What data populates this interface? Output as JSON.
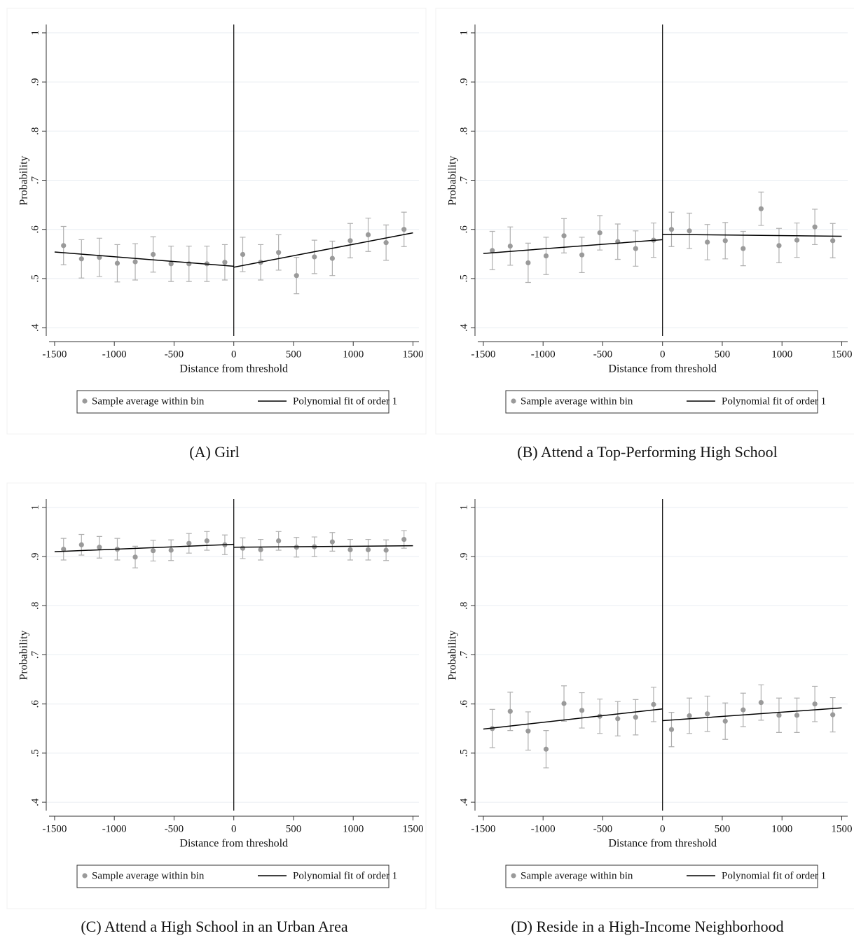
{
  "chart_data": [
    {
      "type": "scatter",
      "caption": "(A) Girl",
      "xlabel": "Distance from threshold",
      "ylabel": "Probability",
      "xlim": [
        -1570,
        1550
      ],
      "ylim": [
        0.383,
        1.017
      ],
      "xticks": [
        -1500,
        -1000,
        -500,
        0,
        500,
        1000,
        1500
      ],
      "yticks": [
        {
          "value": 0.4,
          "label": ".4"
        },
        {
          "value": 0.5,
          "label": ".5"
        },
        {
          "value": 0.6,
          "label": ".6"
        },
        {
          "value": 0.7,
          "label": ".7"
        },
        {
          "value": 0.8,
          "label": ".8"
        },
        {
          "value": 0.9,
          "label": ".9"
        },
        1
      ],
      "grid": true,
      "vline": 0,
      "series": [
        {
          "name": "Sample average within bin",
          "color": "#9a9a9a",
          "x": [
            -1425,
            -1275,
            -1125,
            -975,
            -825,
            -675,
            -525,
            -375,
            -225,
            -75,
            75,
            225,
            375,
            525,
            675,
            825,
            975,
            1125,
            1275,
            1425
          ],
          "values": [
            0.567,
            0.54,
            0.543,
            0.531,
            0.534,
            0.549,
            0.53,
            0.53,
            0.53,
            0.533,
            0.549,
            0.533,
            0.553,
            0.506,
            0.544,
            0.541,
            0.577,
            0.589,
            0.573,
            0.6
          ],
          "errors": [
            0.039,
            0.039,
            0.039,
            0.038,
            0.037,
            0.036,
            0.036,
            0.036,
            0.036,
            0.036,
            0.035,
            0.036,
            0.036,
            0.037,
            0.034,
            0.035,
            0.035,
            0.034,
            0.036,
            0.035
          ]
        }
      ],
      "fit": {
        "name": "Polynomial fit of order 1",
        "color": "#000000",
        "x": [
          [
            -1500,
            0
          ],
          [
            0,
            1500
          ]
        ],
        "values": [
          [
            0.554,
            0.525
          ],
          [
            0.523,
            0.593
          ]
        ]
      }
    },
    {
      "type": "scatter",
      "caption": "(B) Attend a Top-Performing High School",
      "xlabel": "Distance from threshold",
      "ylabel": "Probability",
      "xlim": [
        -1570,
        1550
      ],
      "ylim": [
        0.383,
        1.017
      ],
      "xticks": [
        -1500,
        -1000,
        -500,
        0,
        500,
        1000,
        1500
      ],
      "yticks": [
        {
          "value": 0.4,
          "label": ".4"
        },
        {
          "value": 0.5,
          "label": ".5"
        },
        {
          "value": 0.6,
          "label": ".6"
        },
        {
          "value": 0.7,
          "label": ".7"
        },
        {
          "value": 0.8,
          "label": ".8"
        },
        {
          "value": 0.9,
          "label": ".9"
        },
        1
      ],
      "grid": true,
      "vline": 0,
      "series": [
        {
          "name": "Sample average within bin",
          "color": "#9a9a9a",
          "x": [
            -1425,
            -1275,
            -1125,
            -975,
            -825,
            -675,
            -525,
            -375,
            -225,
            -75,
            75,
            225,
            375,
            525,
            675,
            825,
            975,
            1125,
            1275,
            1425
          ],
          "values": [
            0.557,
            0.566,
            0.532,
            0.546,
            0.587,
            0.548,
            0.593,
            0.575,
            0.561,
            0.578,
            0.6,
            0.597,
            0.574,
            0.577,
            0.561,
            0.642,
            0.567,
            0.578,
            0.605,
            0.577
          ],
          "errors": [
            0.039,
            0.039,
            0.04,
            0.038,
            0.035,
            0.036,
            0.035,
            0.036,
            0.036,
            0.035,
            0.035,
            0.036,
            0.036,
            0.037,
            0.035,
            0.034,
            0.035,
            0.035,
            0.036,
            0.035
          ]
        }
      ],
      "fit": {
        "name": "Polynomial fit of order 1",
        "color": "#000000",
        "x": [
          [
            -1500,
            0
          ],
          [
            0,
            1500
          ]
        ],
        "values": [
          [
            0.551,
            0.579
          ],
          [
            0.59,
            0.586
          ]
        ]
      }
    },
    {
      "type": "scatter",
      "caption": "(C) Attend a High School in an Urban Area",
      "xlabel": "Distance from threshold",
      "ylabel": "Probability",
      "xlim": [
        -1570,
        1550
      ],
      "ylim": [
        0.383,
        1.017
      ],
      "xticks": [
        -1500,
        -1000,
        -500,
        0,
        500,
        1000,
        1500
      ],
      "yticks": [
        {
          "value": 0.4,
          "label": ".4"
        },
        {
          "value": 0.5,
          "label": ".5"
        },
        {
          "value": 0.6,
          "label": ".6"
        },
        {
          "value": 0.7,
          "label": ".7"
        },
        {
          "value": 0.8,
          "label": ".8"
        },
        {
          "value": 0.9,
          "label": ".9"
        },
        1
      ],
      "grid": true,
      "vline": 0,
      "series": [
        {
          "name": "Sample average within bin",
          "color": "#9a9a9a",
          "x": [
            -1425,
            -1275,
            -1125,
            -975,
            -825,
            -675,
            -525,
            -375,
            -225,
            -75,
            75,
            225,
            375,
            525,
            675,
            825,
            975,
            1125,
            1275,
            1425
          ],
          "values": [
            0.915,
            0.924,
            0.919,
            0.915,
            0.899,
            0.912,
            0.913,
            0.927,
            0.932,
            0.924,
            0.917,
            0.914,
            0.932,
            0.919,
            0.92,
            0.93,
            0.914,
            0.914,
            0.913,
            0.935
          ],
          "errors": [
            0.022,
            0.021,
            0.022,
            0.022,
            0.022,
            0.021,
            0.021,
            0.02,
            0.019,
            0.02,
            0.021,
            0.021,
            0.019,
            0.02,
            0.02,
            0.019,
            0.021,
            0.021,
            0.021,
            0.018
          ]
        }
      ],
      "fit": {
        "name": "Polynomial fit of order 1",
        "color": "#000000",
        "x": [
          [
            -1500,
            0
          ],
          [
            0,
            1500
          ]
        ],
        "values": [
          [
            0.91,
            0.925
          ],
          [
            0.919,
            0.922
          ]
        ]
      }
    },
    {
      "type": "scatter",
      "caption": "(D) Reside in a High-Income Neighborhood",
      "xlabel": "Distance from threshold",
      "ylabel": "Probability",
      "xlim": [
        -1570,
        1550
      ],
      "ylim": [
        0.383,
        1.017
      ],
      "xticks": [
        -1500,
        -1000,
        -500,
        0,
        500,
        1000,
        1500
      ],
      "yticks": [
        {
          "value": 0.4,
          "label": ".4"
        },
        {
          "value": 0.5,
          "label": ".5"
        },
        {
          "value": 0.6,
          "label": ".6"
        },
        {
          "value": 0.7,
          "label": ".7"
        },
        {
          "value": 0.8,
          "label": ".8"
        },
        {
          "value": 0.9,
          "label": ".9"
        },
        1
      ],
      "grid": true,
      "vline": 0,
      "series": [
        {
          "name": "Sample average within bin",
          "color": "#9a9a9a",
          "x": [
            -1425,
            -1275,
            -1125,
            -975,
            -825,
            -675,
            -525,
            -375,
            -225,
            -75,
            75,
            225,
            375,
            525,
            675,
            825,
            975,
            1125,
            1275,
            1425
          ],
          "values": [
            0.55,
            0.585,
            0.545,
            0.508,
            0.601,
            0.587,
            0.575,
            0.57,
            0.573,
            0.599,
            0.548,
            0.576,
            0.58,
            0.565,
            0.588,
            0.603,
            0.577,
            0.577,
            0.6,
            0.578
          ],
          "errors": [
            0.039,
            0.039,
            0.039,
            0.038,
            0.036,
            0.036,
            0.035,
            0.035,
            0.036,
            0.035,
            0.035,
            0.036,
            0.036,
            0.037,
            0.034,
            0.036,
            0.035,
            0.035,
            0.036,
            0.035
          ]
        }
      ],
      "fit": {
        "name": "Polynomial fit of order 1",
        "color": "#000000",
        "x": [
          [
            -1500,
            0
          ],
          [
            0,
            1500
          ]
        ],
        "values": [
          [
            0.549,
            0.59
          ],
          [
            0.566,
            0.592
          ]
        ]
      }
    }
  ]
}
